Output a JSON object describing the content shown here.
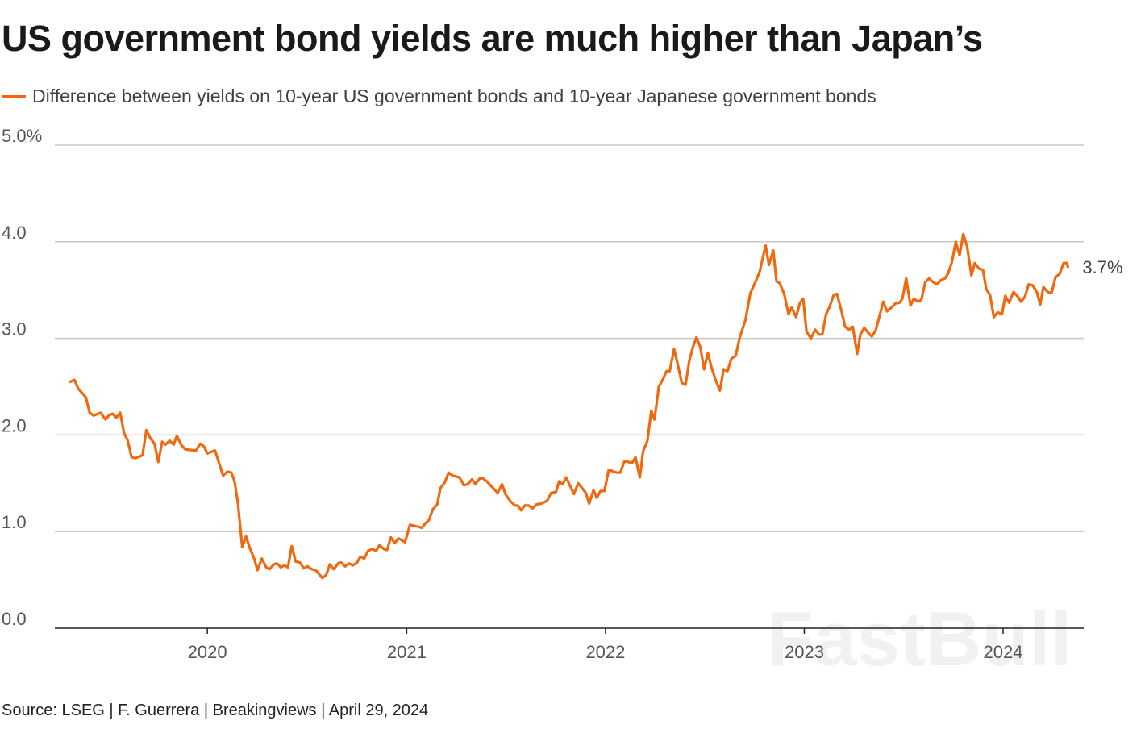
{
  "title": "US government bond yields are much higher than Japan’s",
  "source": "Source: LSEG | F. Guerrera | Breakingviews | April 29, 2024",
  "watermark": "FastBull",
  "colors": {
    "line": "#f0690f",
    "grid": "#c8c8c8",
    "axis": "#222222"
  },
  "chart_data": {
    "type": "line",
    "title": "US government bond yields are much higher than Japan’s",
    "xlabel": "",
    "ylabel": "",
    "xlim": [
      "2019-03-27",
      "2024-05-28"
    ],
    "ylim": [
      0,
      5
    ],
    "grid": true,
    "legend_placement": "top-left",
    "x_ticks": [
      {
        "date": "2020-01-01",
        "label": "2020"
      },
      {
        "date": "2021-01-01",
        "label": "2021"
      },
      {
        "date": "2022-01-01",
        "label": "2022"
      },
      {
        "date": "2023-01-01",
        "label": "2023"
      },
      {
        "date": "2024-01-01",
        "label": "2024"
      }
    ],
    "y_ticks": [
      {
        "value": 0,
        "label": "0.0"
      },
      {
        "value": 1,
        "label": "1.0"
      },
      {
        "value": 2,
        "label": "2.0"
      },
      {
        "value": 3,
        "label": "3.0"
      },
      {
        "value": 4,
        "label": "4.0"
      },
      {
        "value": 5,
        "label": "5.0%"
      }
    ],
    "end_label": "3.7%",
    "series": [
      {
        "name": "Difference between yields on 10-year US government bonds and 10-year Japanese government bonds",
        "points": [
          [
            "2019-04-24",
            2.55
          ],
          [
            "2019-05-02",
            2.57
          ],
          [
            "2019-05-09",
            2.48
          ],
          [
            "2019-05-23",
            2.39
          ],
          [
            "2019-05-30",
            2.23
          ],
          [
            "2019-06-06",
            2.2
          ],
          [
            "2019-06-19",
            2.23
          ],
          [
            "2019-06-28",
            2.16
          ],
          [
            "2019-07-04",
            2.2
          ],
          [
            "2019-07-11",
            2.22
          ],
          [
            "2019-07-18",
            2.18
          ],
          [
            "2019-07-25",
            2.23
          ],
          [
            "2019-08-01",
            2.02
          ],
          [
            "2019-08-08",
            1.94
          ],
          [
            "2019-08-15",
            1.77
          ],
          [
            "2019-08-22",
            1.76
          ],
          [
            "2019-09-04",
            1.79
          ],
          [
            "2019-09-11",
            2.05
          ],
          [
            "2019-09-18",
            1.97
          ],
          [
            "2019-09-26",
            1.91
          ],
          [
            "2019-10-03",
            1.72
          ],
          [
            "2019-10-10",
            1.93
          ],
          [
            "2019-10-16",
            1.9
          ],
          [
            "2019-10-24",
            1.94
          ],
          [
            "2019-10-31",
            1.9
          ],
          [
            "2019-11-06",
            1.99
          ],
          [
            "2019-11-15",
            1.89
          ],
          [
            "2019-11-22",
            1.85
          ],
          [
            "2019-12-11",
            1.84
          ],
          [
            "2019-12-19",
            1.91
          ],
          [
            "2019-12-26",
            1.88
          ],
          [
            "2020-01-01",
            1.81
          ],
          [
            "2020-01-15",
            1.84
          ],
          [
            "2020-01-23",
            1.7
          ],
          [
            "2020-01-30",
            1.58
          ],
          [
            "2020-02-07",
            1.62
          ],
          [
            "2020-02-14",
            1.61
          ],
          [
            "2020-02-20",
            1.52
          ],
          [
            "2020-02-26",
            1.3
          ],
          [
            "2020-03-05",
            0.84
          ],
          [
            "2020-03-12",
            0.95
          ],
          [
            "2020-03-19",
            0.83
          ],
          [
            "2020-03-27",
            0.72
          ],
          [
            "2020-04-02",
            0.6
          ],
          [
            "2020-04-10",
            0.72
          ],
          [
            "2020-04-18",
            0.63
          ],
          [
            "2020-04-24",
            0.61
          ],
          [
            "2020-05-02",
            0.66
          ],
          [
            "2020-05-08",
            0.67
          ],
          [
            "2020-05-15",
            0.63
          ],
          [
            "2020-05-22",
            0.65
          ],
          [
            "2020-05-28",
            0.63
          ],
          [
            "2020-06-04",
            0.85
          ],
          [
            "2020-06-11",
            0.69
          ],
          [
            "2020-06-19",
            0.68
          ],
          [
            "2020-06-26",
            0.62
          ],
          [
            "2020-07-03",
            0.64
          ],
          [
            "2020-07-11",
            0.61
          ],
          [
            "2020-07-18",
            0.6
          ],
          [
            "2020-07-30",
            0.52
          ],
          [
            "2020-08-06",
            0.55
          ],
          [
            "2020-08-13",
            0.66
          ],
          [
            "2020-08-20",
            0.61
          ],
          [
            "2020-08-28",
            0.67
          ],
          [
            "2020-09-03",
            0.68
          ],
          [
            "2020-09-10",
            0.64
          ],
          [
            "2020-09-17",
            0.67
          ],
          [
            "2020-09-24",
            0.65
          ],
          [
            "2020-10-02",
            0.68
          ],
          [
            "2020-10-08",
            0.74
          ],
          [
            "2020-10-15",
            0.72
          ],
          [
            "2020-10-22",
            0.8
          ],
          [
            "2020-10-30",
            0.82
          ],
          [
            "2020-11-06",
            0.8
          ],
          [
            "2020-11-12",
            0.86
          ],
          [
            "2020-11-20",
            0.82
          ],
          [
            "2020-11-26",
            0.81
          ],
          [
            "2020-12-03",
            0.94
          ],
          [
            "2020-12-10",
            0.88
          ],
          [
            "2020-12-17",
            0.93
          ],
          [
            "2020-12-29",
            0.89
          ],
          [
            "2021-01-07",
            1.07
          ],
          [
            "2021-01-15",
            1.06
          ],
          [
            "2021-01-29",
            1.04
          ],
          [
            "2021-02-05",
            1.09
          ],
          [
            "2021-02-11",
            1.12
          ],
          [
            "2021-02-18",
            1.23
          ],
          [
            "2021-02-26",
            1.28
          ],
          [
            "2021-03-04",
            1.45
          ],
          [
            "2021-03-12",
            1.51
          ],
          [
            "2021-03-19",
            1.61
          ],
          [
            "2021-03-26",
            1.58
          ],
          [
            "2021-04-08",
            1.56
          ],
          [
            "2021-04-16",
            1.48
          ],
          [
            "2021-04-23",
            1.49
          ],
          [
            "2021-05-01",
            1.54
          ],
          [
            "2021-05-07",
            1.49
          ],
          [
            "2021-05-15",
            1.55
          ],
          [
            "2021-05-21",
            1.55
          ],
          [
            "2021-05-28",
            1.52
          ],
          [
            "2021-06-07",
            1.46
          ],
          [
            "2021-06-17",
            1.4
          ],
          [
            "2021-06-25",
            1.49
          ],
          [
            "2021-07-02",
            1.38
          ],
          [
            "2021-07-11",
            1.31
          ],
          [
            "2021-07-19",
            1.27
          ],
          [
            "2021-07-24",
            1.27
          ],
          [
            "2021-07-30",
            1.22
          ],
          [
            "2021-08-06",
            1.27
          ],
          [
            "2021-08-13",
            1.27
          ],
          [
            "2021-08-20",
            1.24
          ],
          [
            "2021-08-27",
            1.28
          ],
          [
            "2021-09-05",
            1.29
          ],
          [
            "2021-09-16",
            1.32
          ],
          [
            "2021-09-23",
            1.4
          ],
          [
            "2021-10-02",
            1.41
          ],
          [
            "2021-10-08",
            1.52
          ],
          [
            "2021-10-14",
            1.49
          ],
          [
            "2021-10-21",
            1.56
          ],
          [
            "2021-10-29",
            1.46
          ],
          [
            "2021-11-04",
            1.39
          ],
          [
            "2021-11-12",
            1.5
          ],
          [
            "2021-11-19",
            1.45
          ],
          [
            "2021-11-26",
            1.4
          ],
          [
            "2021-12-02",
            1.29
          ],
          [
            "2021-12-10",
            1.43
          ],
          [
            "2021-12-16",
            1.35
          ],
          [
            "2021-12-23",
            1.42
          ],
          [
            "2021-12-30",
            1.42
          ],
          [
            "2022-01-07",
            1.64
          ],
          [
            "2022-01-16",
            1.62
          ],
          [
            "2022-01-22",
            1.61
          ],
          [
            "2022-01-28",
            1.61
          ],
          [
            "2022-02-05",
            1.73
          ],
          [
            "2022-02-12",
            1.72
          ],
          [
            "2022-02-19",
            1.71
          ],
          [
            "2022-02-25",
            1.77
          ],
          [
            "2022-03-05",
            1.56
          ],
          [
            "2022-03-11",
            1.83
          ],
          [
            "2022-03-19",
            1.94
          ],
          [
            "2022-03-26",
            2.25
          ],
          [
            "2022-04-01",
            2.16
          ],
          [
            "2022-04-09",
            2.5
          ],
          [
            "2022-04-16",
            2.57
          ],
          [
            "2022-04-23",
            2.66
          ],
          [
            "2022-04-29",
            2.66
          ],
          [
            "2022-05-07",
            2.89
          ],
          [
            "2022-05-14",
            2.72
          ],
          [
            "2022-05-21",
            2.54
          ],
          [
            "2022-05-28",
            2.52
          ],
          [
            "2022-06-04",
            2.77
          ],
          [
            "2022-06-11",
            2.92
          ],
          [
            "2022-06-17",
            3.01
          ],
          [
            "2022-06-24",
            2.91
          ],
          [
            "2022-07-01",
            2.68
          ],
          [
            "2022-07-08",
            2.85
          ],
          [
            "2022-07-14",
            2.71
          ],
          [
            "2022-07-22",
            2.57
          ],
          [
            "2022-07-30",
            2.46
          ],
          [
            "2022-08-06",
            2.68
          ],
          [
            "2022-08-13",
            2.66
          ],
          [
            "2022-08-20",
            2.79
          ],
          [
            "2022-08-28",
            2.82
          ],
          [
            "2022-09-04",
            3.0
          ],
          [
            "2022-09-15",
            3.19
          ],
          [
            "2022-09-24",
            3.47
          ],
          [
            "2022-10-03",
            3.58
          ],
          [
            "2022-10-11",
            3.69
          ],
          [
            "2022-10-22",
            3.96
          ],
          [
            "2022-10-28",
            3.76
          ],
          [
            "2022-11-05",
            3.91
          ],
          [
            "2022-11-11",
            3.59
          ],
          [
            "2022-11-17",
            3.57
          ],
          [
            "2022-11-25",
            3.46
          ],
          [
            "2022-12-03",
            3.25
          ],
          [
            "2022-12-09",
            3.32
          ],
          [
            "2022-12-17",
            3.22
          ],
          [
            "2022-12-24",
            3.37
          ],
          [
            "2022-12-30",
            3.41
          ],
          [
            "2023-01-05",
            3.07
          ],
          [
            "2023-01-13",
            3.0
          ],
          [
            "2023-01-21",
            3.09
          ],
          [
            "2023-01-28",
            3.04
          ],
          [
            "2023-02-03",
            3.04
          ],
          [
            "2023-02-10",
            3.25
          ],
          [
            "2023-02-16",
            3.32
          ],
          [
            "2023-02-24",
            3.45
          ],
          [
            "2023-03-02",
            3.46
          ],
          [
            "2023-03-10",
            3.29
          ],
          [
            "2023-03-17",
            3.12
          ],
          [
            "2023-03-24",
            3.09
          ],
          [
            "2023-03-31",
            3.12
          ],
          [
            "2023-04-08",
            2.84
          ],
          [
            "2023-04-14",
            3.04
          ],
          [
            "2023-04-21",
            3.11
          ],
          [
            "2023-04-28",
            3.06
          ],
          [
            "2023-05-05",
            3.02
          ],
          [
            "2023-05-12",
            3.08
          ],
          [
            "2023-05-19",
            3.23
          ],
          [
            "2023-05-26",
            3.38
          ],
          [
            "2023-06-02",
            3.28
          ],
          [
            "2023-06-10",
            3.32
          ],
          [
            "2023-06-17",
            3.36
          ],
          [
            "2023-06-25",
            3.37
          ],
          [
            "2023-06-30",
            3.41
          ],
          [
            "2023-07-07",
            3.62
          ],
          [
            "2023-07-15",
            3.34
          ],
          [
            "2023-07-21",
            3.41
          ],
          [
            "2023-07-29",
            3.38
          ],
          [
            "2023-08-04",
            3.4
          ],
          [
            "2023-08-11",
            3.58
          ],
          [
            "2023-08-18",
            3.62
          ],
          [
            "2023-08-26",
            3.58
          ],
          [
            "2023-09-02",
            3.56
          ],
          [
            "2023-09-08",
            3.6
          ],
          [
            "2023-09-16",
            3.62
          ],
          [
            "2023-09-22",
            3.67
          ],
          [
            "2023-09-29",
            3.79
          ],
          [
            "2023-10-06",
            4.0
          ],
          [
            "2023-10-13",
            3.86
          ],
          [
            "2023-10-20",
            4.08
          ],
          [
            "2023-10-27",
            3.95
          ],
          [
            "2023-11-04",
            3.65
          ],
          [
            "2023-11-10",
            3.78
          ],
          [
            "2023-11-18",
            3.72
          ],
          [
            "2023-11-25",
            3.71
          ],
          [
            "2023-12-01",
            3.51
          ],
          [
            "2023-12-08",
            3.45
          ],
          [
            "2023-12-15",
            3.22
          ],
          [
            "2023-12-22",
            3.27
          ],
          [
            "2023-12-30",
            3.25
          ],
          [
            "2024-01-05",
            3.44
          ],
          [
            "2024-01-12",
            3.37
          ],
          [
            "2024-01-20",
            3.48
          ],
          [
            "2024-01-27",
            3.44
          ],
          [
            "2024-02-03",
            3.38
          ],
          [
            "2024-02-10",
            3.43
          ],
          [
            "2024-02-17",
            3.56
          ],
          [
            "2024-02-24",
            3.55
          ],
          [
            "2024-03-03",
            3.48
          ],
          [
            "2024-03-09",
            3.35
          ],
          [
            "2024-03-15",
            3.53
          ],
          [
            "2024-03-23",
            3.48
          ],
          [
            "2024-03-30",
            3.47
          ],
          [
            "2024-04-06",
            3.63
          ],
          [
            "2024-04-14",
            3.67
          ],
          [
            "2024-04-21",
            3.78
          ],
          [
            "2024-04-27",
            3.78
          ],
          [
            "2024-04-29",
            3.74
          ]
        ]
      }
    ]
  }
}
